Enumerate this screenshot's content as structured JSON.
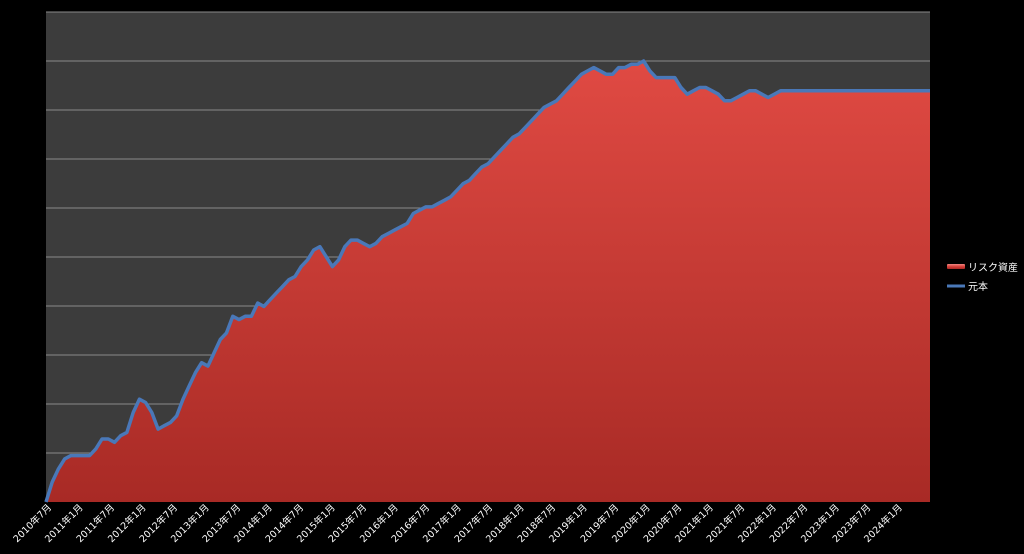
{
  "chart_data": {
    "type": "area",
    "x_tick_labels": [
      "2010年7月",
      "2011年1月",
      "2011年7月",
      "2012年1月",
      "2012年7月",
      "2013年1月",
      "2013年7月",
      "2014年1月",
      "2014年7月",
      "2015年1月",
      "2015年7月",
      "2016年1月",
      "2016年7月",
      "2017年1月",
      "2017年7月",
      "2018年1月",
      "2018年7月",
      "2019年1月",
      "2019年7月",
      "2020年1月",
      "2020年7月",
      "2021年1月",
      "2021年7月",
      "2022年1月",
      "2022年7月",
      "2023年1月",
      "2023年7月",
      "2024年1月"
    ],
    "y_gridlines": 10,
    "grid": true,
    "legend_position": "right",
    "series": [
      {
        "name": "リスク資産",
        "style": "area",
        "color": "#d8403a",
        "values": [
          [
            0,
            0
          ],
          [
            1,
            6
          ],
          [
            2,
            10
          ],
          [
            3,
            13
          ],
          [
            4,
            14
          ],
          [
            5,
            14
          ],
          [
            6,
            14
          ],
          [
            7,
            14
          ],
          [
            8,
            16
          ],
          [
            9,
            19
          ],
          [
            10,
            19
          ],
          [
            11,
            18
          ],
          [
            12,
            20
          ],
          [
            13,
            21
          ],
          [
            14,
            27
          ],
          [
            15,
            31
          ],
          [
            16,
            30
          ],
          [
            17,
            27
          ],
          [
            18,
            22
          ],
          [
            19,
            23
          ],
          [
            20,
            24
          ],
          [
            21,
            26
          ],
          [
            22,
            31
          ],
          [
            23,
            35
          ],
          [
            24,
            39
          ],
          [
            25,
            42
          ],
          [
            26,
            41
          ],
          [
            27,
            45
          ],
          [
            28,
            49
          ],
          [
            29,
            51
          ],
          [
            30,
            56
          ],
          [
            31,
            55
          ],
          [
            32,
            56
          ],
          [
            33,
            56
          ],
          [
            34,
            60
          ],
          [
            35,
            59
          ],
          [
            36,
            61
          ],
          [
            37,
            63
          ],
          [
            38,
            65
          ],
          [
            39,
            67
          ],
          [
            40,
            68
          ],
          [
            41,
            71
          ],
          [
            42,
            73
          ],
          [
            43,
            76
          ],
          [
            44,
            77
          ],
          [
            45,
            74
          ],
          [
            46,
            71
          ],
          [
            47,
            73
          ],
          [
            48,
            77
          ],
          [
            49,
            79
          ],
          [
            50,
            79
          ],
          [
            51,
            78
          ],
          [
            52,
            77
          ],
          [
            53,
            78
          ],
          [
            54,
            80
          ],
          [
            55,
            81
          ],
          [
            56,
            82
          ],
          [
            57,
            83
          ],
          [
            58,
            84
          ],
          [
            59,
            87
          ],
          [
            60,
            88
          ],
          [
            61,
            89
          ],
          [
            62,
            89
          ],
          [
            63,
            90
          ],
          [
            64,
            91
          ],
          [
            65,
            92
          ],
          [
            66,
            94
          ],
          [
            67,
            96
          ],
          [
            68,
            97
          ],
          [
            69,
            99
          ],
          [
            70,
            101
          ],
          [
            71,
            102
          ],
          [
            72,
            104
          ],
          [
            73,
            106
          ],
          [
            74,
            108
          ],
          [
            75,
            110
          ],
          [
            76,
            111
          ],
          [
            77,
            113
          ],
          [
            78,
            115
          ],
          [
            79,
            117
          ],
          [
            80,
            119
          ],
          [
            81,
            120
          ],
          [
            82,
            121
          ],
          [
            83,
            123
          ],
          [
            84,
            125
          ],
          [
            85,
            127
          ],
          [
            86,
            129
          ],
          [
            87,
            130
          ],
          [
            88,
            131
          ],
          [
            89,
            130
          ],
          [
            90,
            129
          ],
          [
            91,
            129
          ],
          [
            92,
            131
          ],
          [
            93,
            131
          ],
          [
            94,
            132
          ],
          [
            95,
            132
          ],
          [
            96,
            133
          ],
          [
            97,
            130
          ],
          [
            98,
            128
          ],
          [
            99,
            128
          ],
          [
            100,
            128
          ],
          [
            101,
            128
          ],
          [
            102,
            125
          ],
          [
            103,
            123
          ],
          [
            104,
            124
          ],
          [
            105,
            125
          ],
          [
            106,
            125
          ],
          [
            107,
            124
          ],
          [
            108,
            123
          ],
          [
            109,
            121
          ],
          [
            110,
            121
          ],
          [
            111,
            122
          ],
          [
            112,
            123
          ],
          [
            113,
            124
          ],
          [
            114,
            124
          ],
          [
            115,
            123
          ],
          [
            116,
            122
          ],
          [
            117,
            123
          ],
          [
            118,
            124
          ],
          [
            119,
            124
          ],
          [
            120,
            124
          ],
          [
            121,
            124
          ],
          [
            122,
            124
          ],
          [
            123,
            124
          ],
          [
            124,
            124
          ],
          [
            125,
            124
          ],
          [
            126,
            124
          ],
          [
            127,
            124
          ],
          [
            128,
            124
          ],
          [
            129,
            124
          ],
          [
            130,
            124
          ],
          [
            131,
            124
          ],
          [
            132,
            124
          ],
          [
            133,
            124
          ],
          [
            134,
            124
          ],
          [
            135,
            124
          ],
          [
            136,
            124
          ],
          [
            137,
            124
          ],
          [
            138,
            124
          ],
          [
            139,
            124
          ],
          [
            140,
            124
          ],
          [
            141,
            124
          ],
          [
            142,
            124
          ]
        ]
      },
      {
        "name": "元本",
        "style": "line",
        "color": "#4a78b8",
        "values": [
          [
            0,
            0
          ],
          [
            1,
            6
          ],
          [
            2,
            10
          ],
          [
            3,
            13
          ],
          [
            4,
            14
          ],
          [
            5,
            14
          ],
          [
            6,
            14
          ],
          [
            7,
            14
          ],
          [
            8,
            16
          ],
          [
            9,
            19
          ],
          [
            10,
            19
          ],
          [
            11,
            18
          ],
          [
            12,
            20
          ],
          [
            13,
            21
          ],
          [
            14,
            27
          ],
          [
            15,
            31
          ],
          [
            16,
            30
          ],
          [
            17,
            27
          ],
          [
            18,
            22
          ],
          [
            19,
            23
          ],
          [
            20,
            24
          ],
          [
            21,
            26
          ],
          [
            22,
            31
          ],
          [
            23,
            35
          ],
          [
            24,
            39
          ],
          [
            25,
            42
          ],
          [
            26,
            41
          ],
          [
            27,
            45
          ],
          [
            28,
            49
          ],
          [
            29,
            51
          ],
          [
            30,
            56
          ],
          [
            31,
            55
          ],
          [
            32,
            56
          ],
          [
            33,
            56
          ],
          [
            34,
            60
          ],
          [
            35,
            59
          ],
          [
            36,
            61
          ],
          [
            37,
            63
          ],
          [
            38,
            65
          ],
          [
            39,
            67
          ],
          [
            40,
            68
          ],
          [
            41,
            71
          ],
          [
            42,
            73
          ],
          [
            43,
            76
          ],
          [
            44,
            77
          ],
          [
            45,
            74
          ],
          [
            46,
            71
          ],
          [
            47,
            73
          ],
          [
            48,
            77
          ],
          [
            49,
            79
          ],
          [
            50,
            79
          ],
          [
            51,
            78
          ],
          [
            52,
            77
          ],
          [
            53,
            78
          ],
          [
            54,
            80
          ],
          [
            55,
            81
          ],
          [
            56,
            82
          ],
          [
            57,
            83
          ],
          [
            58,
            84
          ],
          [
            59,
            87
          ],
          [
            60,
            88
          ],
          [
            61,
            89
          ],
          [
            62,
            89
          ],
          [
            63,
            90
          ],
          [
            64,
            91
          ],
          [
            65,
            92
          ],
          [
            66,
            94
          ],
          [
            67,
            96
          ],
          [
            68,
            97
          ],
          [
            69,
            99
          ],
          [
            70,
            101
          ],
          [
            71,
            102
          ],
          [
            72,
            104
          ],
          [
            73,
            106
          ],
          [
            74,
            108
          ],
          [
            75,
            110
          ],
          [
            76,
            111
          ],
          [
            77,
            113
          ],
          [
            78,
            115
          ],
          [
            79,
            117
          ],
          [
            80,
            119
          ],
          [
            81,
            120
          ],
          [
            82,
            121
          ],
          [
            83,
            123
          ],
          [
            84,
            125
          ],
          [
            85,
            127
          ],
          [
            86,
            129
          ],
          [
            87,
            130
          ],
          [
            88,
            131
          ],
          [
            89,
            130
          ],
          [
            90,
            129
          ],
          [
            91,
            129
          ],
          [
            92,
            131
          ],
          [
            93,
            131
          ],
          [
            94,
            132
          ],
          [
            95,
            132
          ],
          [
            96,
            133
          ],
          [
            97,
            130
          ],
          [
            98,
            128
          ],
          [
            99,
            128
          ],
          [
            100,
            128
          ],
          [
            101,
            128
          ],
          [
            102,
            125
          ],
          [
            103,
            123
          ],
          [
            104,
            124
          ],
          [
            105,
            125
          ],
          [
            106,
            125
          ],
          [
            107,
            124
          ],
          [
            108,
            123
          ],
          [
            109,
            121
          ],
          [
            110,
            121
          ],
          [
            111,
            122
          ],
          [
            112,
            123
          ],
          [
            113,
            124
          ],
          [
            114,
            124
          ],
          [
            115,
            123
          ],
          [
            116,
            122
          ],
          [
            117,
            123
          ],
          [
            118,
            124
          ],
          [
            119,
            124
          ],
          [
            120,
            124
          ],
          [
            121,
            124
          ],
          [
            122,
            124
          ],
          [
            123,
            124
          ],
          [
            124,
            124
          ],
          [
            125,
            124
          ],
          [
            126,
            124
          ],
          [
            127,
            124
          ],
          [
            128,
            124
          ],
          [
            129,
            124
          ],
          [
            130,
            124
          ],
          [
            131,
            124
          ],
          [
            132,
            124
          ],
          [
            133,
            124
          ],
          [
            134,
            124
          ],
          [
            135,
            124
          ],
          [
            136,
            124
          ],
          [
            137,
            124
          ],
          [
            138,
            124
          ],
          [
            139,
            124
          ],
          [
            140,
            124
          ],
          [
            141,
            124
          ],
          [
            142,
            124
          ]
        ]
      }
    ]
  }
}
